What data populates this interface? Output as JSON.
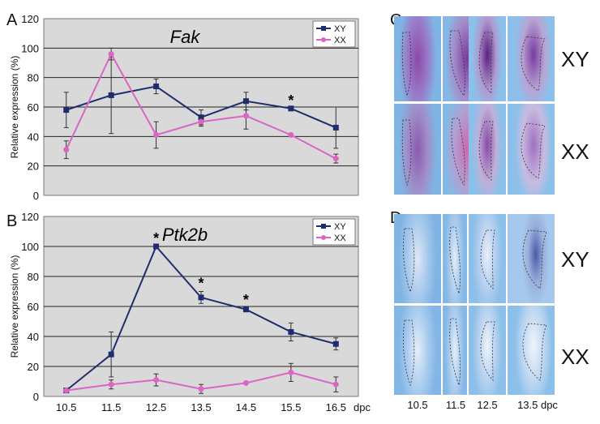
{
  "panels": [
    "A",
    "B",
    "C",
    "D"
  ],
  "chart_data": [
    {
      "type": "line",
      "title": "Fak",
      "ylabel": "Relative expression (%)",
      "ylim": [
        0,
        120
      ],
      "yticks": [
        0,
        20,
        40,
        60,
        80,
        100,
        120
      ],
      "grid": true,
      "legend_position": "top-right",
      "series": [
        {
          "name": "XY",
          "color": "#1f2d6e",
          "marker": "square",
          "x": [
            "10.5",
            "11.5",
            "12.5",
            "13.5",
            "14.5",
            "15.5",
            "16.5"
          ],
          "values": [
            58,
            68,
            74,
            53,
            64,
            59,
            46
          ],
          "err": [
            12,
            26,
            5,
            5,
            6,
            0,
            14
          ]
        },
        {
          "name": "XX",
          "color": "#d966c4",
          "marker": "circle",
          "x": [
            "10.5",
            "11.5",
            "12.5",
            "13.5",
            "14.5",
            "15.5",
            "16.5"
          ],
          "values": [
            31,
            96,
            41,
            50,
            54,
            41,
            25
          ],
          "err": [
            6,
            4,
            9,
            3,
            9,
            0,
            3
          ]
        }
      ],
      "asterisks": [
        {
          "x": "15.5",
          "text": "*"
        }
      ]
    },
    {
      "type": "line",
      "title": "Ptk2b",
      "ylabel": "Relative expression (%)",
      "ylim": [
        0,
        120
      ],
      "yticks": [
        0,
        20,
        40,
        60,
        80,
        100,
        120
      ],
      "grid": true,
      "legend_position": "top-right",
      "categories": [
        "10.5",
        "11.5",
        "12.5",
        "13.5",
        "14.5",
        "15.5",
        "16.5"
      ],
      "x_unit": "dpc",
      "series": [
        {
          "name": "XY",
          "color": "#1f2d6e",
          "marker": "square",
          "values": [
            4,
            28,
            100,
            66,
            58,
            43,
            35
          ],
          "err": [
            0,
            15,
            0,
            4,
            1,
            6,
            4
          ]
        },
        {
          "name": "XX",
          "color": "#d966c4",
          "marker": "circle",
          "values": [
            4,
            8,
            11,
            5,
            9,
            16,
            8
          ],
          "err": [
            0,
            3,
            4,
            3,
            0,
            6,
            5
          ]
        }
      ],
      "asterisks": [
        {
          "x": "12.5",
          "text": "*"
        },
        {
          "x": "13.5",
          "text": "*"
        },
        {
          "x": "14.5",
          "text": "*"
        }
      ]
    }
  ],
  "micrographs": {
    "row_labels_top": [
      "XY",
      "XX"
    ],
    "row_labels_bottom": [
      "XY",
      "XX"
    ],
    "column_labels": [
      "10.5",
      "11.5",
      "12.5",
      "13.5 dpc"
    ],
    "stain_colors": {
      "purple": "#7a3aa0",
      "blue_background": "#8cc0ea"
    }
  }
}
